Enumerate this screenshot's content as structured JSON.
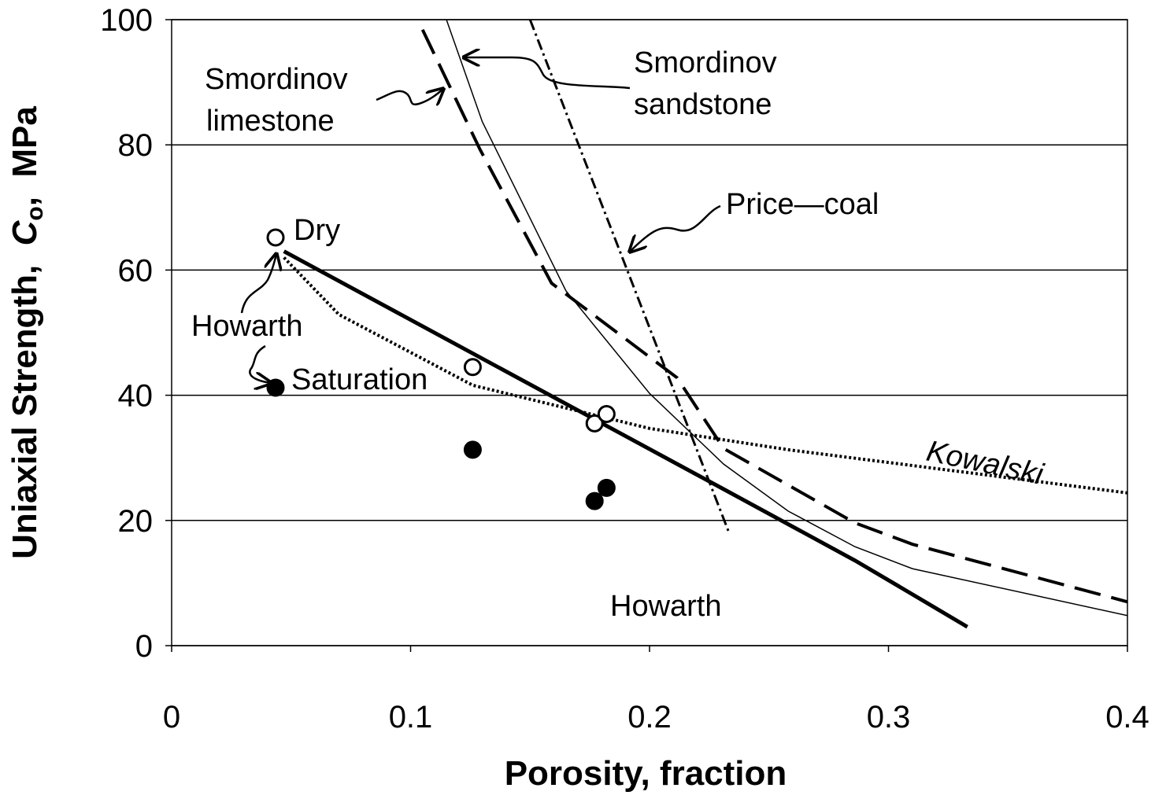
{
  "chart_data": {
    "type": "line",
    "x_label": "Porosity,  fraction",
    "y_label_parts": [
      "Uniaxial Strength,  ",
      "C",
      "o",
      ",  MPa"
    ],
    "xlim": [
      0,
      0.4
    ],
    "ylim": [
      0,
      100
    ],
    "xticks": [
      0,
      0.1,
      0.2,
      0.3,
      0.4
    ],
    "yticks": [
      0,
      20,
      40,
      60,
      80,
      100
    ],
    "grid": true,
    "series": [
      {
        "kind": "line",
        "style": "solid",
        "width": 5,
        "color": "#000000",
        "x": [
          0.047,
          0.231,
          0.286,
          0.31,
          0.333
        ],
        "values": [
          63,
          25,
          13.6,
          8.2,
          3
        ]
      },
      {
        "kind": "line",
        "style": "dotted",
        "width": 4,
        "color": "#000000",
        "x": [
          0.047,
          0.07,
          0.126,
          0.2,
          0.258,
          0.4
        ],
        "values": [
          62,
          52.9,
          41.6,
          34.7,
          31.3,
          24.4
        ]
      },
      {
        "kind": "line",
        "style": "dashed",
        "width": 4,
        "color": "#000000",
        "x": [
          0.105,
          0.129,
          0.159,
          0.2115,
          0.231,
          0.286,
          0.31,
          0.4
        ],
        "values": [
          98.4,
          79.3,
          57.9,
          42.8,
          31.5,
          19.6,
          16.2,
          7
        ]
      },
      {
        "kind": "line",
        "style": "solid",
        "width": 1.5,
        "color": "#000000",
        "x": [
          0.115,
          0.13,
          0.165,
          0.2,
          0.231,
          0.258,
          0.286,
          0.31,
          0.4
        ],
        "values": [
          100,
          83.7,
          56.7,
          40.3,
          29,
          21.5,
          15.8,
          12.3,
          4.8
        ]
      },
      {
        "kind": "line",
        "style": "dashdot",
        "width": 3,
        "color": "#000000",
        "x": [
          0.15,
          0.233
        ],
        "values": [
          100,
          18.3
        ]
      },
      {
        "kind": "scatter",
        "marker": "open",
        "color": "#000000",
        "x": [
          0.0435,
          0.126,
          0.177,
          0.182
        ],
        "values": [
          65.2,
          44.5,
          35.5,
          37
        ]
      },
      {
        "kind": "scatter",
        "marker": "filled",
        "color": "#000000",
        "x": [
          0.0435,
          0.126,
          0.177,
          0.182
        ],
        "values": [
          41.2,
          31.3,
          23.1,
          25.2
        ]
      }
    ],
    "annotations": [
      "Smordinov",
      "limestone",
      "Smordinov",
      "sandstone",
      "Price—coal",
      "Dry",
      "Howarth",
      "Saturation",
      "Kowalski",
      "Howarth"
    ]
  }
}
